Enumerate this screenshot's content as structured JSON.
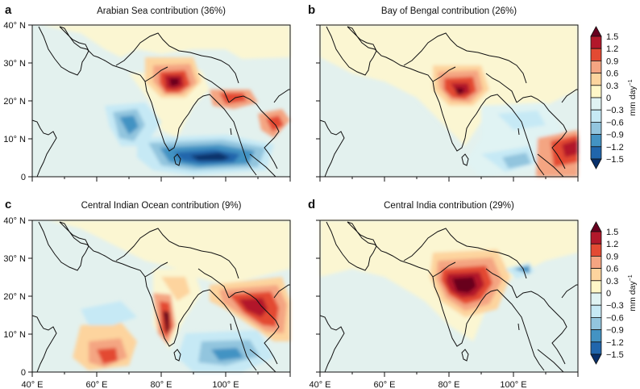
{
  "panels": [
    {
      "letter": "a",
      "title": "Arabian Sea contribution (36%)"
    },
    {
      "letter": "b",
      "title": "Bay of Bengal contribution (26%)"
    },
    {
      "letter": "c",
      "title": "Central Indian Ocean contribution (9%)"
    },
    {
      "letter": "d",
      "title": "Central India contribution (29%)"
    }
  ],
  "axes": {
    "lat_ticks": [
      "40° N",
      "30° N",
      "20° N",
      "10° N",
      "0"
    ],
    "lon_ticks": [
      "40° E",
      "60° E",
      "80° E",
      "100° E"
    ]
  },
  "colorbar": {
    "unit": "mm day",
    "unit_sup": "−1",
    "labels": [
      "1.5",
      "1.2",
      "0.9",
      "0.6",
      "0.3",
      "0",
      "−0.3",
      "−0.6",
      "−0.9",
      "−1.2",
      "−1.5"
    ],
    "colors": [
      "#67001f",
      "#b2182b",
      "#e34a33",
      "#f4a582",
      "#fdd49e",
      "#fff7c8",
      "#e0f3f3",
      "#c6e9f5",
      "#92c5de",
      "#4393c3",
      "#2166ac",
      "#08306b"
    ]
  },
  "palette": {
    "ocean_neutral": "#e3f1ee",
    "land_neutral": "#fbf6d2"
  }
}
